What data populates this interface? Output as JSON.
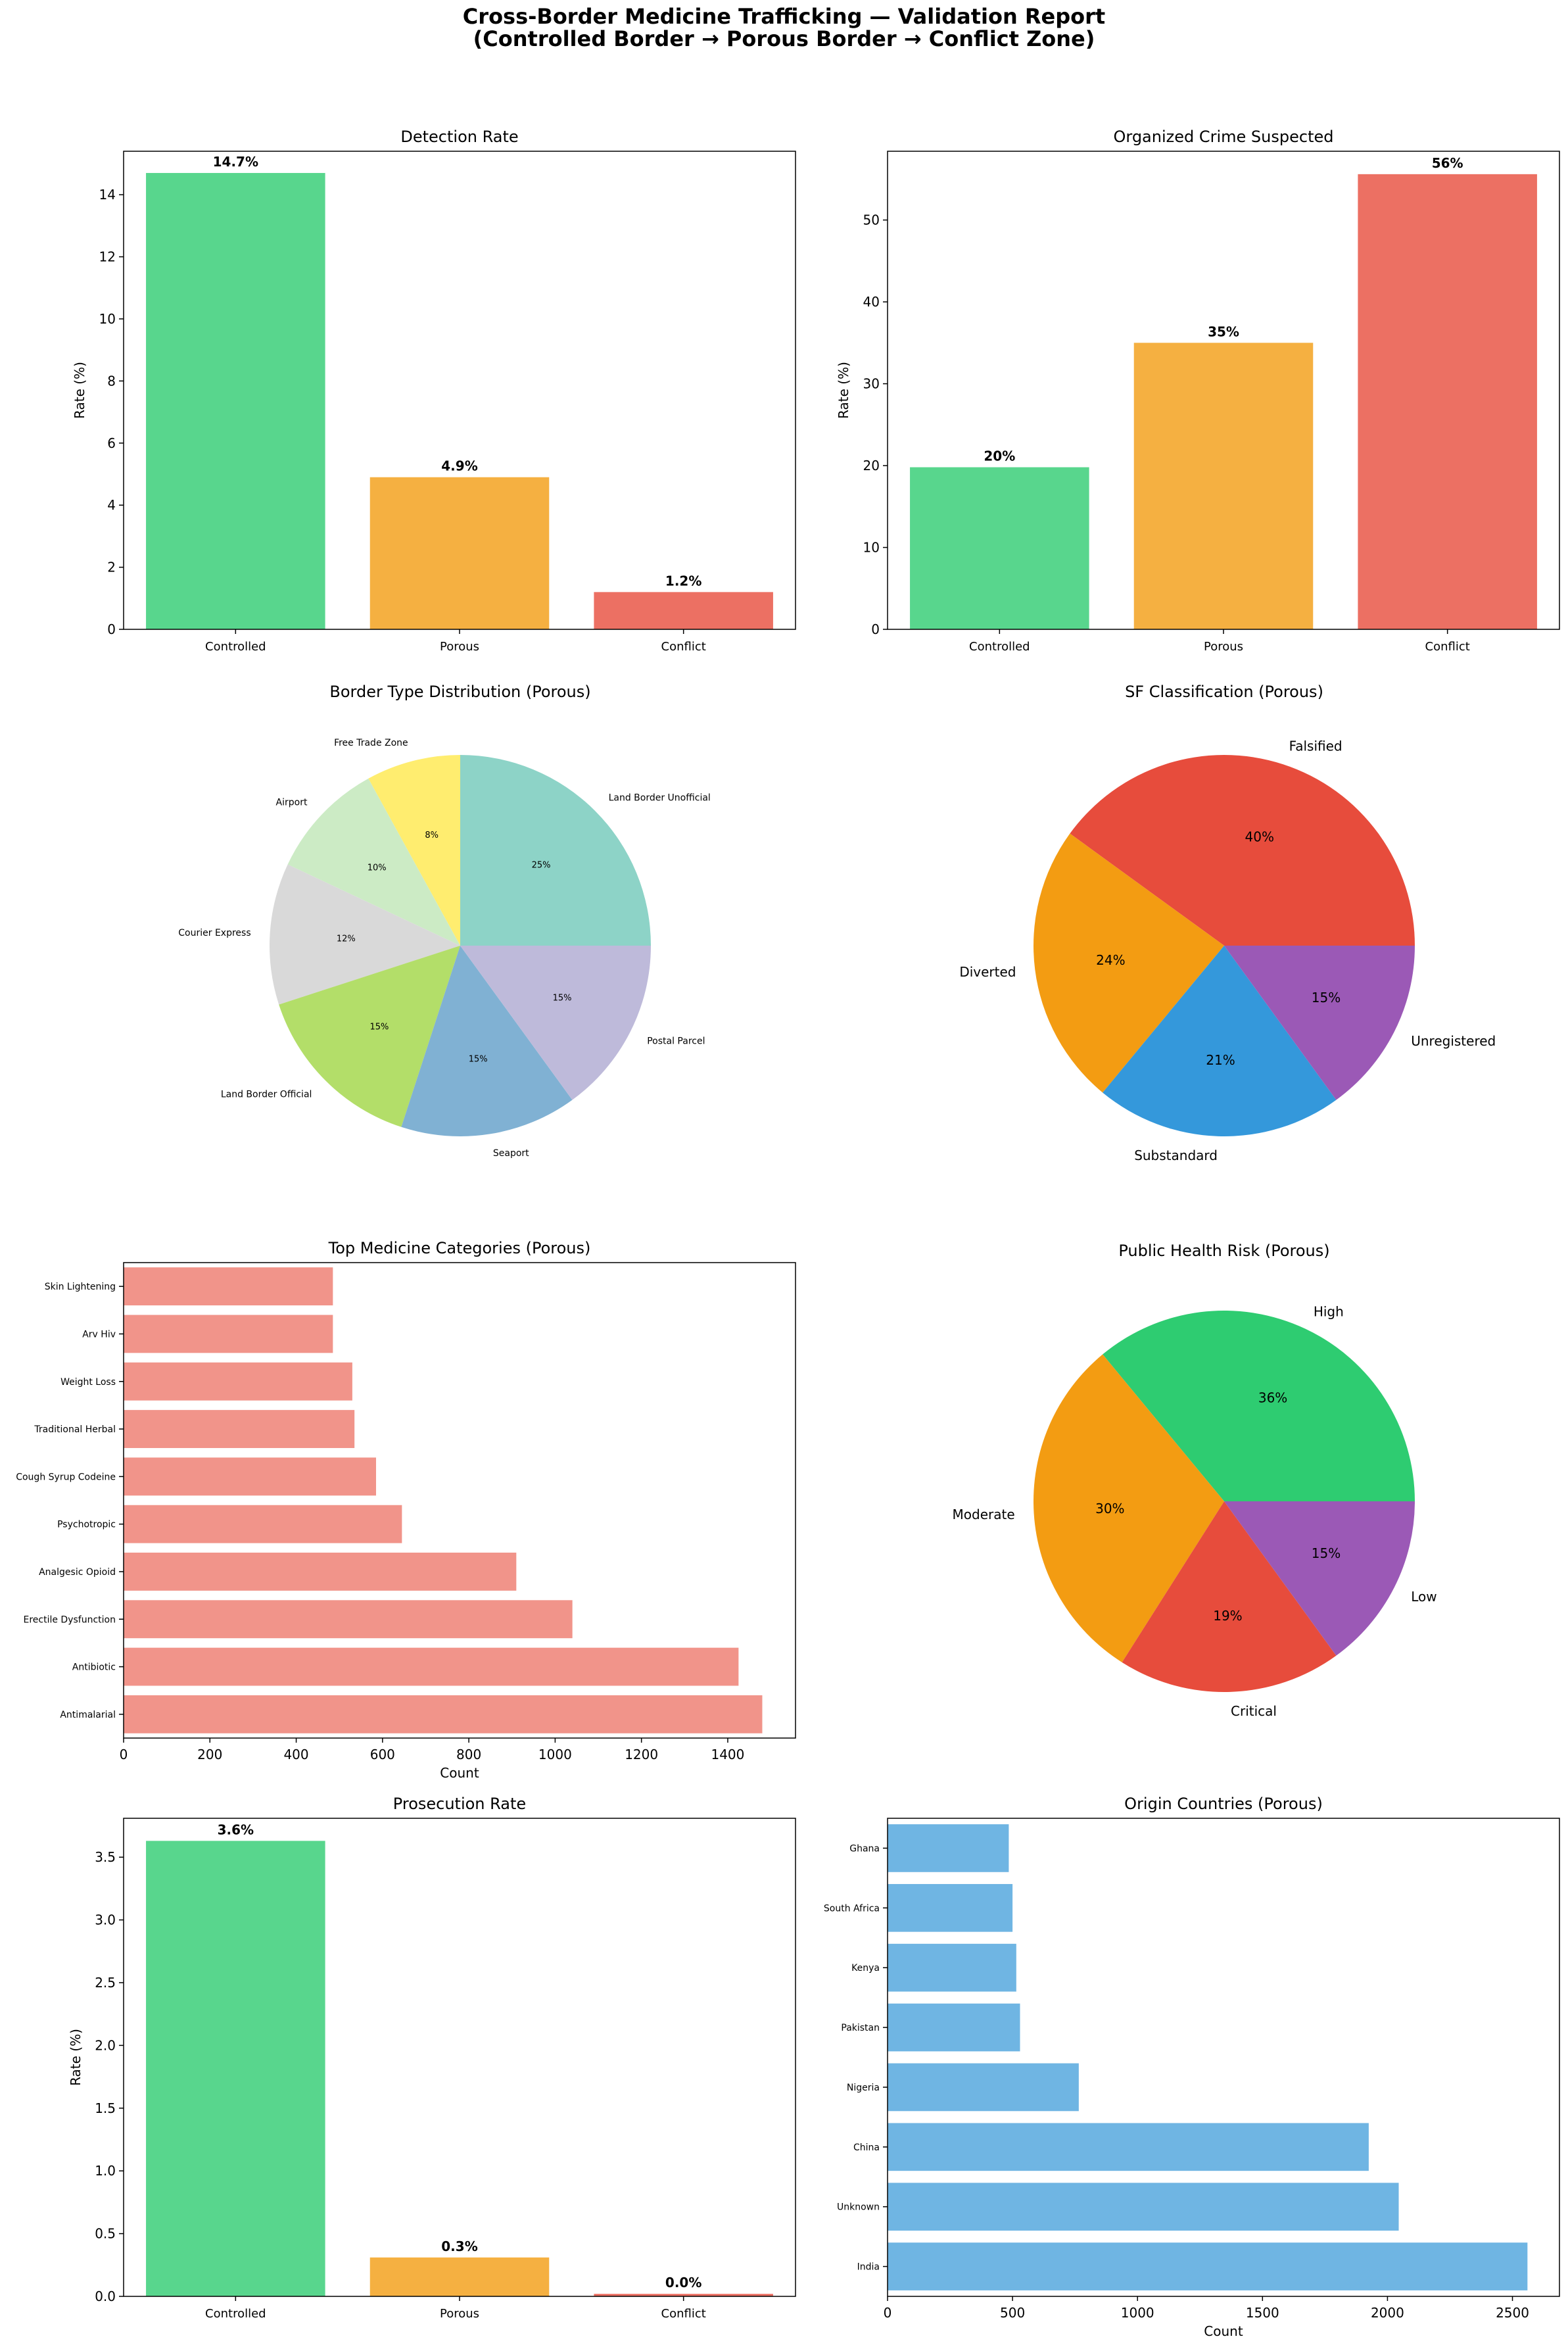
{
  "page": {
    "title_line1": "Cross-Border Medicine Trafficking — Validation Report",
    "title_line2": "(Controlled Border → Porous Border → Conflict Zone)"
  },
  "chart_data": [
    {
      "id": "detection",
      "type": "bar",
      "title": "Detection Rate",
      "ylabel": "Rate (%)",
      "xlabel": "",
      "categories": [
        "Controlled",
        "Porous",
        "Conflict"
      ],
      "values": [
        14.7,
        4.9,
        1.2
      ],
      "labels": [
        "14.7%",
        "4.9%",
        "1.2%"
      ],
      "colors": [
        "#58d68d",
        "#f5b041",
        "#ec7063"
      ],
      "ylim": [
        0,
        15.4
      ],
      "yticks": [
        0,
        2,
        4,
        6,
        8,
        10,
        12,
        14
      ]
    },
    {
      "id": "organized",
      "type": "bar",
      "title": "Organized Crime Suspected",
      "ylabel": "Rate (%)",
      "xlabel": "",
      "categories": [
        "Controlled",
        "Porous",
        "Conflict"
      ],
      "values": [
        19.8,
        35.0,
        55.6
      ],
      "labels": [
        "20%",
        "35%",
        "56%"
      ],
      "colors": [
        "#58d68d",
        "#f5b041",
        "#ec7063"
      ],
      "ylim": [
        0,
        58.4
      ],
      "yticks": [
        0,
        10,
        20,
        30,
        40,
        50
      ]
    },
    {
      "id": "border_type",
      "type": "pie",
      "title": "Border Type Distribution (Porous)",
      "labels": [
        "Land Border Unofficial",
        "Free Trade Zone",
        "Airport",
        "Courier Express",
        "Land Border Official",
        "Seaport",
        "Postal Parcel"
      ],
      "values": [
        25,
        8,
        10,
        12,
        15,
        15,
        15
      ],
      "pct_labels": [
        "25%",
        "8%",
        "10%",
        "12%",
        "15%",
        "15%",
        "15%"
      ],
      "colors": [
        "#8dd3c7",
        "#ffed6f",
        "#ccebc5",
        "#d9d9d9",
        "#b3de69",
        "#80b1d3",
        "#bebada"
      ]
    },
    {
      "id": "sf_class",
      "type": "pie",
      "title": "SF Classification (Porous)",
      "labels": [
        "Falsified",
        "Diverted",
        "Substandard",
        "Unregistered"
      ],
      "values": [
        40,
        24,
        21,
        15
      ],
      "pct_labels": [
        "40%",
        "24%",
        "21%",
        "15%"
      ],
      "colors": [
        "#e74c3c",
        "#f39c12",
        "#3498db",
        "#9b59b6"
      ]
    },
    {
      "id": "categories",
      "type": "bar",
      "orientation": "horizontal",
      "title": "Top Medicine Categories (Porous)",
      "xlabel": "Count",
      "ylabel": "",
      "categories": [
        "Antimalarial",
        "Antibiotic",
        "Erectile Dysfunction",
        "Analgesic Opioid",
        "Psychotropic",
        "Cough Syrup Codeine",
        "Traditional Herbal",
        "Weight Loss",
        "Arv Hiv",
        "Skin Lightening"
      ],
      "values": [
        1480,
        1425,
        1040,
        910,
        645,
        585,
        535,
        530,
        485,
        485
      ],
      "color": "#f1948a",
      "xlim": [
        0,
        1557
      ],
      "xticks": [
        0,
        200,
        400,
        600,
        800,
        1000,
        1200,
        1400
      ]
    },
    {
      "id": "health_risk",
      "type": "pie",
      "title": "Public Health Risk (Porous)",
      "labels": [
        "High",
        "Moderate",
        "Critical",
        "Low"
      ],
      "values": [
        36,
        30,
        19,
        15
      ],
      "pct_labels": [
        "36%",
        "30%",
        "19%",
        "15%"
      ],
      "colors": [
        "#2ecc71",
        "#f39c12",
        "#e74c3c",
        "#9b59b6"
      ]
    },
    {
      "id": "prosecution",
      "type": "bar",
      "title": "Prosecution Rate",
      "ylabel": "Rate (%)",
      "xlabel": "",
      "categories": [
        "Controlled",
        "Porous",
        "Conflict"
      ],
      "values": [
        3.63,
        0.31,
        0.02
      ],
      "labels": [
        "3.6%",
        "0.3%",
        "0.0%"
      ],
      "colors": [
        "#58d68d",
        "#f5b041",
        "#ec7063"
      ],
      "ylim": [
        0,
        3.81
      ],
      "yticks": [
        0.0,
        0.5,
        1.0,
        1.5,
        2.0,
        2.5,
        3.0,
        3.5
      ]
    },
    {
      "id": "origin",
      "type": "bar",
      "orientation": "horizontal",
      "title": "Origin Countries (Porous)",
      "xlabel": "Count",
      "ylabel": "",
      "categories": [
        "India",
        "Unknown",
        "China",
        "Nigeria",
        "Pakistan",
        "Kenya",
        "South Africa",
        "Ghana"
      ],
      "values": [
        2560,
        2045,
        1925,
        765,
        530,
        515,
        500,
        485
      ],
      "color": "#6fb5e3",
      "xlim": [
        0,
        2688
      ],
      "xticks": [
        0,
        500,
        1000,
        1500,
        2000,
        2500
      ]
    }
  ]
}
